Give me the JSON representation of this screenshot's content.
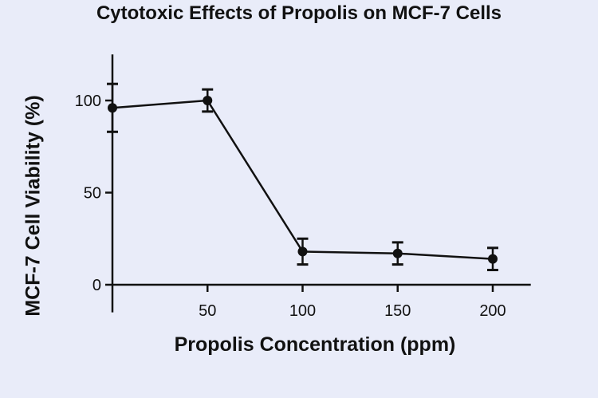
{
  "chart_data": {
    "type": "line",
    "title": "Cytotoxic Effects of Propolis on MCF-7 Cells",
    "xlabel": "Propolis Concentration (ppm)",
    "ylabel": "MCF-7 Cell Viability (%)",
    "x": [
      0,
      50,
      100,
      150,
      200
    ],
    "x_ticks": [
      50,
      100,
      150,
      200
    ],
    "y_ticks": [
      0,
      50,
      100
    ],
    "xlim": [
      0,
      220
    ],
    "ylim": [
      -15,
      125
    ],
    "series": [
      {
        "values": [
          96,
          100,
          18,
          17,
          14
        ],
        "errors": [
          13,
          6,
          7,
          6,
          6
        ]
      }
    ],
    "colors": {
      "line": "#111111",
      "background": "#e9ecf9"
    },
    "grid": false,
    "legend": "none"
  }
}
